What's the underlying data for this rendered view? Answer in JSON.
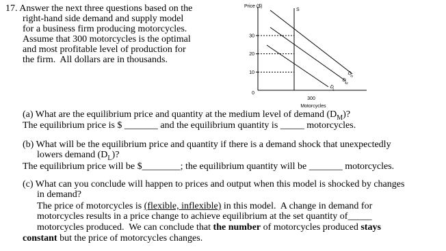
{
  "intro": [
    [
      "17. Answer the next three questions based on the"
    ],
    [
      "right-hand side demand and supply model"
    ],
    [
      "for a business firm producing motorcycles."
    ],
    [
      "Assume that 300 motorcycles is the optimal"
    ],
    [
      "and most profitable level of production for"
    ],
    [
      "the firm.  All dollars are in thousands."
    ]
  ],
  "figure": {
    "y_label": "Price ($)",
    "x_label": "Motorcycles",
    "supply_label": "S",
    "ylim": [
      0,
      45
    ],
    "xlim": [
      0,
      900
    ],
    "yticks": [
      0,
      10,
      20,
      30
    ],
    "xticks": [
      300
    ],
    "demand_labels": [
      {
        "t": "D",
        "sub": "H"
      },
      {
        "t": "D",
        "sub": "M"
      },
      {
        "t": "D",
        "sub": "L"
      }
    ]
  },
  "questions": [
    [
      "(a) What are the equilibrium price and quantity at the medium level of demand (D",
      {
        "t": "M",
        "s": "sub"
      },
      ")?"
    ],
    [
      "The equilibrium price is $ _______ and the equilibrium quantity is _____ motorcycles."
    ],
    [
      "(b) What will be the equilibrium price and quantity if there is a demand shock that unexpectedly"
    ],
    [
      "lowers demand (D",
      {
        "t": "L",
        "s": "sub"
      },
      ")?"
    ],
    [
      "The equilibrium price will be $________; the equilibrium quantity will be _______ motorcycles."
    ],
    [
      "(c) What can you conclude will happen to prices and output when this model is shocked by changes"
    ],
    [
      "in demand?"
    ],
    [
      "The price of motorcycles is ",
      {
        "t": "(flexible, inflexible)",
        "s": "u"
      },
      " in this model.  A change in demand for"
    ],
    [
      "motorcycles results in a price change to achieve equilibrium at the set quantity of_____"
    ],
    [
      "motorcycles produced.  We can conclude that ",
      {
        "t": "the number",
        "s": "b"
      },
      " of motorcycles produced ",
      {
        "t": "stays",
        "s": "b"
      }
    ],
    [
      {
        "t": "constant",
        "s": "b"
      },
      " but the price of motorcycles changes."
    ]
  ]
}
